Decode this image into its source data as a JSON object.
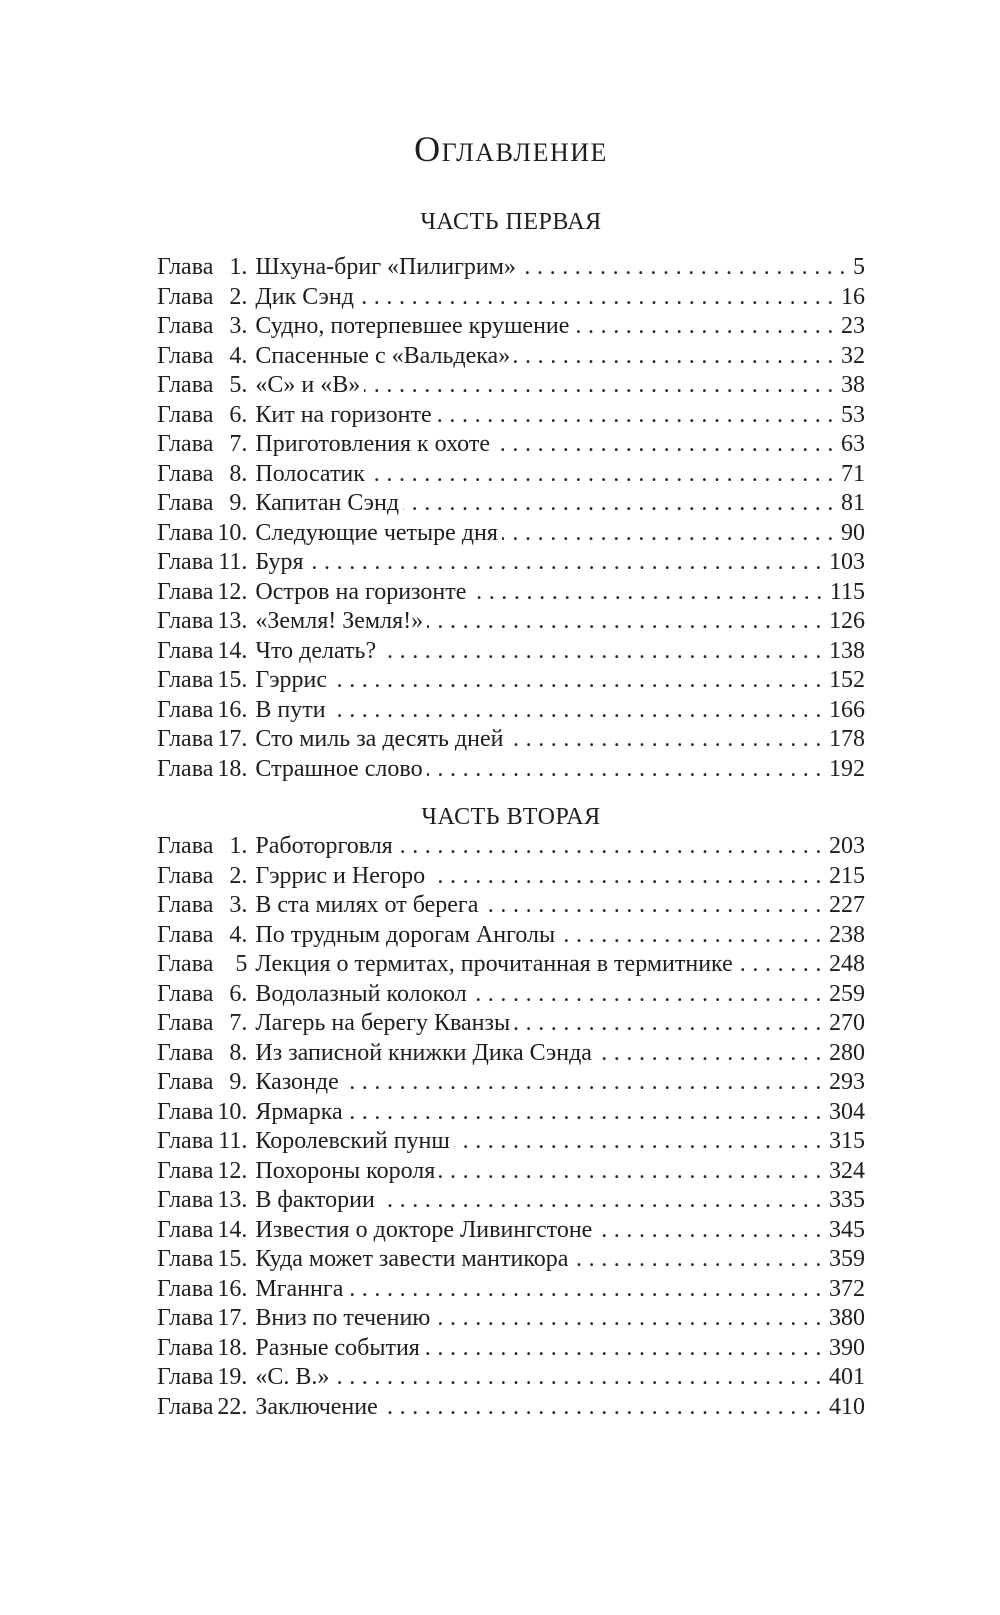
{
  "document": {
    "title": "Оглавление",
    "chapter_label": "Глава",
    "text_color": "#1e1e1e",
    "background_color": "#ffffff"
  },
  "parts": [
    {
      "heading": "ЧАСТЬ ПЕРВАЯ",
      "chapters": [
        {
          "num": "1.",
          "title": "Шхуна-бриг «Пилигрим»",
          "page": "5"
        },
        {
          "num": "2.",
          "title": "Дик Сэнд",
          "page": "16"
        },
        {
          "num": "3.",
          "title": "Судно, потерпевшее крушение",
          "page": "23"
        },
        {
          "num": "4.",
          "title": "Спасенные с «Вальдека»",
          "page": "32"
        },
        {
          "num": "5.",
          "title": "«С» и «В»",
          "page": "38"
        },
        {
          "num": "6.",
          "title": "Кит на горизонте",
          "page": "53"
        },
        {
          "num": "7.",
          "title": "Приготовления к охоте",
          "page": "63"
        },
        {
          "num": "8.",
          "title": "Полосатик",
          "page": "71"
        },
        {
          "num": "9.",
          "title": "Капитан Сэнд",
          "page": "81"
        },
        {
          "num": "10.",
          "title": "Следующие четыре дня",
          "page": "90"
        },
        {
          "num": "11.",
          "title": "Буря",
          "page": "103"
        },
        {
          "num": "12.",
          "title": "Остров на горизонте",
          "page": "115"
        },
        {
          "num": "13.",
          "title": "«Земля! Земля!»",
          "page": "126"
        },
        {
          "num": "14.",
          "title": "Что делать?",
          "page": "138"
        },
        {
          "num": "15.",
          "title": "Гэррис",
          "page": "152"
        },
        {
          "num": "16.",
          "title": "В пути",
          "page": "166"
        },
        {
          "num": "17.",
          "title": "Сто миль за десять дней",
          "page": "178"
        },
        {
          "num": "18.",
          "title": "Страшное слово",
          "page": "192"
        }
      ]
    },
    {
      "heading": "ЧАСТЬ ВТОРАЯ",
      "chapters": [
        {
          "num": "1.",
          "title": "Работорговля",
          "page": "203"
        },
        {
          "num": "2.",
          "title": "Гэррис и Негоро",
          "page": "215"
        },
        {
          "num": "3.",
          "title": "В ста милях от берега",
          "page": "227"
        },
        {
          "num": "4.",
          "title": "По трудным дорогам Анголы",
          "page": "238"
        },
        {
          "num": "5",
          "title": "Лекция о термитах, прочитанная в термитнике",
          "page": "248"
        },
        {
          "num": "6.",
          "title": "Водолазный колокол",
          "page": "259"
        },
        {
          "num": "7.",
          "title": "Лагерь на берегу Кванзы",
          "page": "270"
        },
        {
          "num": "8.",
          "title": "Из записной книжки Дика Сэнда",
          "page": "280"
        },
        {
          "num": "9.",
          "title": "Казонде",
          "page": "293"
        },
        {
          "num": "10.",
          "title": "Ярмарка",
          "page": "304"
        },
        {
          "num": "11.",
          "title": "Королевский пунш",
          "page": "315"
        },
        {
          "num": "12.",
          "title": "Похороны короля",
          "page": "324"
        },
        {
          "num": "13.",
          "title": "В фактории",
          "page": "335"
        },
        {
          "num": "14.",
          "title": "Известия о докторе Ливингстоне",
          "page": "345"
        },
        {
          "num": "15.",
          "title": "Куда может завести мантикора",
          "page": "359"
        },
        {
          "num": "16.",
          "title": "Мганнга",
          "page": "372"
        },
        {
          "num": "17.",
          "title": "Вниз по течению",
          "page": "380"
        },
        {
          "num": "18.",
          "title": "Разные события",
          "page": "390"
        },
        {
          "num": "19.",
          "title": "«С. В.»",
          "page": "401"
        },
        {
          "num": "22.",
          "title": "Заключение",
          "page": "410"
        }
      ]
    }
  ]
}
